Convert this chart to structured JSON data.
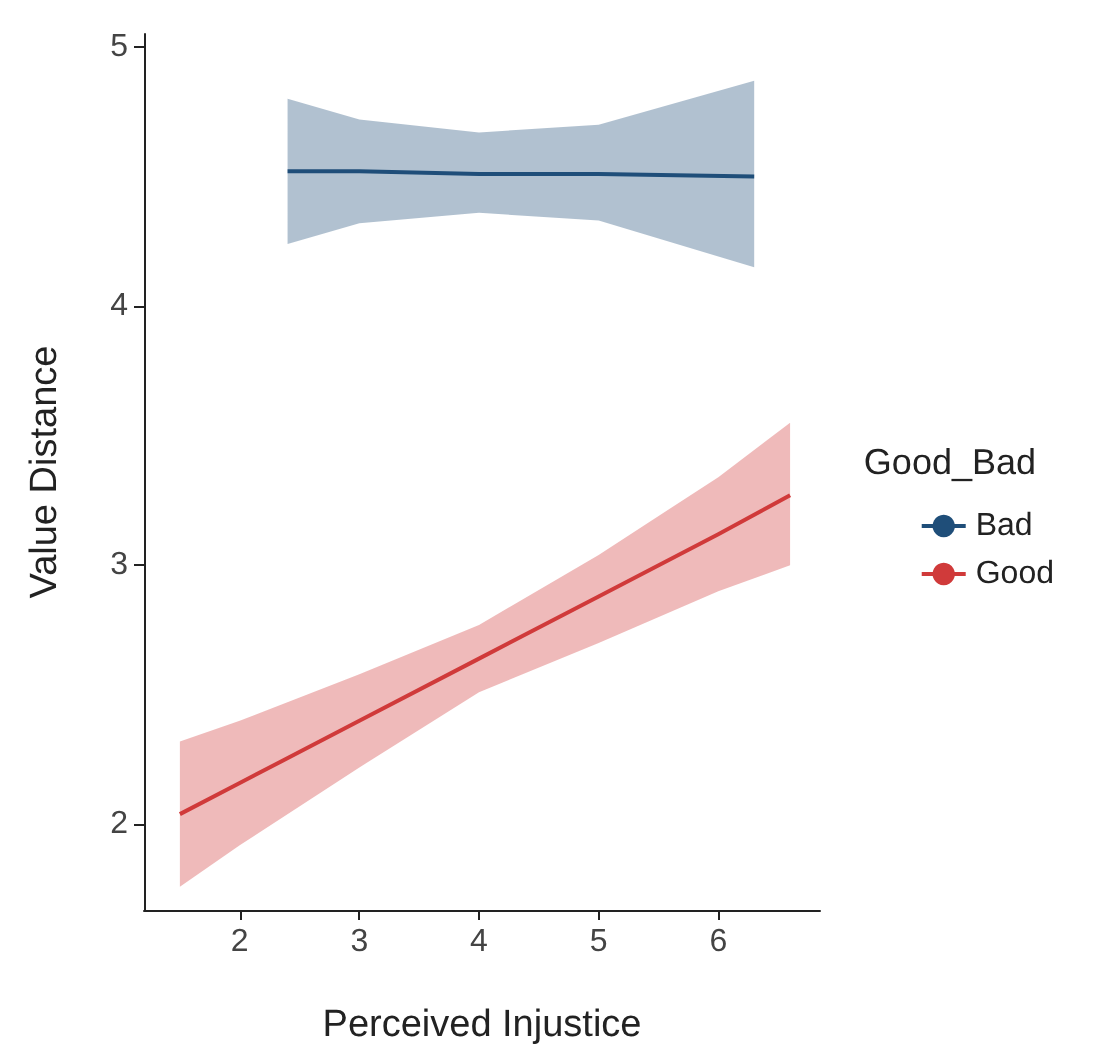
{
  "chart_data": {
    "type": "line",
    "xlabel": "Perceived Injustice",
    "ylabel": "Value Distance",
    "legend_title": "Good_Bad",
    "legend": "right",
    "grid": false,
    "marker": "none",
    "line_style": "solid",
    "xlim": [
      1.2,
      6.85
    ],
    "xticks": [
      2,
      3,
      4,
      5,
      6
    ],
    "ylim": [
      1.67,
      5.05
    ],
    "yticks": [
      2,
      3,
      4,
      5
    ],
    "series": [
      {
        "name": "Bad",
        "color": "#1f4e79",
        "x": [
          2.4,
          3,
          4,
          5,
          6.3
        ],
        "values": [
          4.52,
          4.52,
          4.51,
          4.51,
          4.5
        ],
        "lower": [
          4.24,
          4.32,
          4.36,
          4.33,
          4.15
        ],
        "upper": [
          4.8,
          4.72,
          4.67,
          4.7,
          4.87
        ]
      },
      {
        "name": "Good",
        "color": "#d03a3a",
        "x": [
          1.5,
          2,
          3,
          4,
          5,
          6,
          6.6
        ],
        "values": [
          2.04,
          2.16,
          2.4,
          2.64,
          2.88,
          3.12,
          3.27
        ],
        "lower": [
          1.76,
          1.92,
          2.22,
          2.51,
          2.7,
          2.9,
          3.0
        ],
        "upper": [
          2.32,
          2.4,
          2.58,
          2.77,
          3.04,
          3.34,
          3.55
        ]
      }
    ]
  }
}
